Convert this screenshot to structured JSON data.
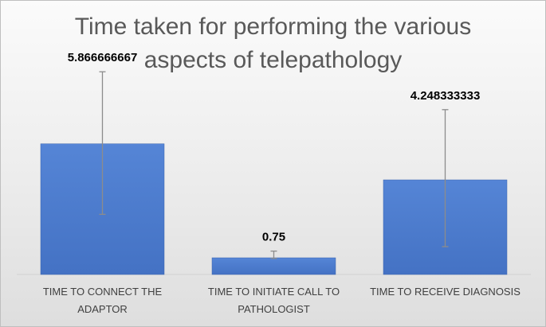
{
  "chart_data": {
    "type": "bar",
    "title_lines": [
      "Time taken for performing the various",
      "aspects of telepathology"
    ],
    "categories_lines": [
      [
        "TIME TO CONNECT THE",
        "ADAPTOR"
      ],
      [
        "TIME TO INITIATE CALL TO",
        "PATHOLOGIST"
      ],
      [
        "TIME TO RECEIVE DIAGNOSIS"
      ]
    ],
    "values": [
      5.866666667,
      0.75,
      4.248333333
    ],
    "value_labels": [
      "5.866666667",
      "0.75",
      "4.248333333"
    ],
    "error_bars": [
      {
        "low": 2.7,
        "high": 9.1
      },
      {
        "low": 0.72,
        "high": 1.05
      },
      {
        "low": 1.25,
        "high": 7.4
      }
    ],
    "ylim": [
      0,
      10
    ],
    "grid": false,
    "legend": "none",
    "bar_color": "#4472C4",
    "bar_color_light": "#5585d6",
    "error_color": "#8c8c8c"
  }
}
